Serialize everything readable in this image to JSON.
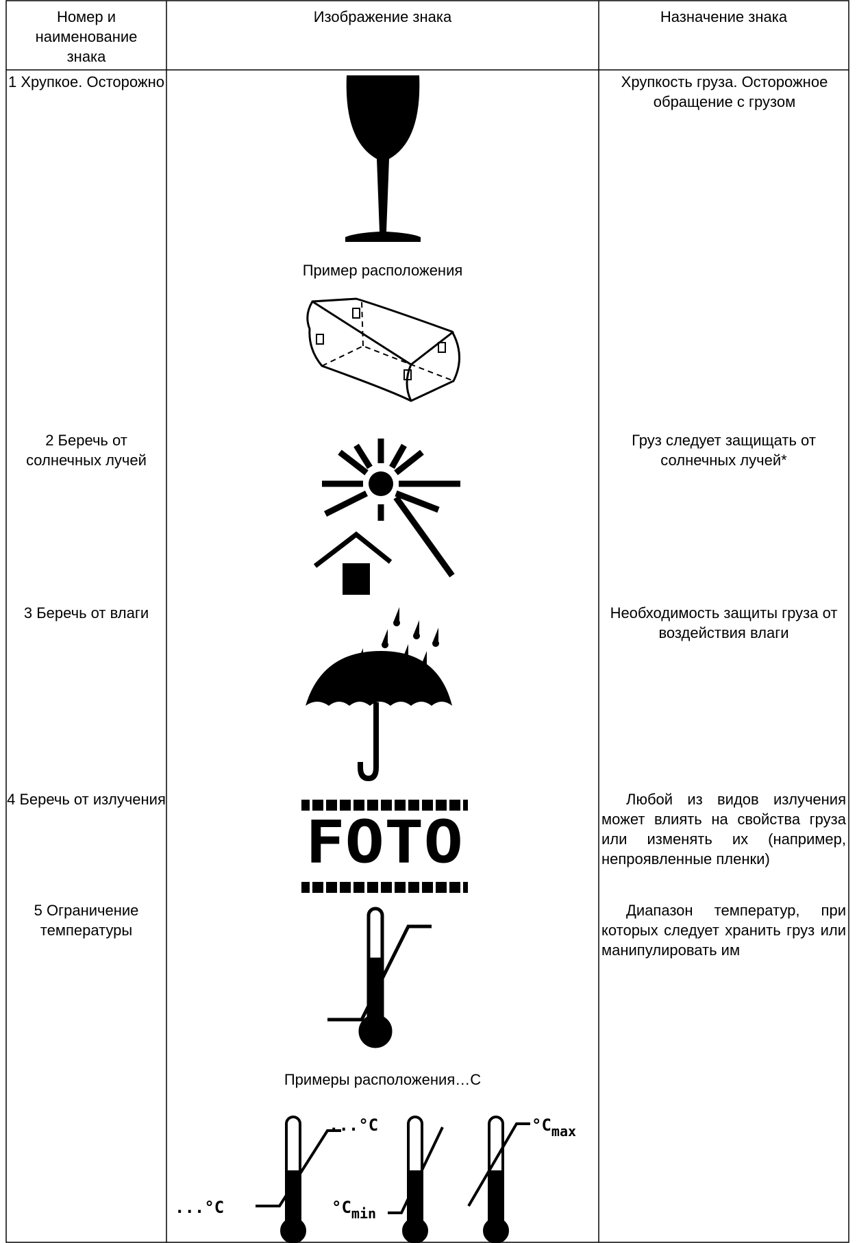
{
  "table": {
    "header": [
      "Номер и наименование знака",
      "Изображение знака",
      "Назначение знака"
    ],
    "rows": [
      {
        "name": "1 Хрупкое. Осторожно",
        "example_caption": "Пример расположения",
        "purpose": "Хрупкость груза. Осторожное обращение с грузом"
      },
      {
        "name": "2 Беречь от солнечных лучей",
        "purpose": "Груз следует защищать от солнечных лучей*"
      },
      {
        "name": "3 Беречь от влаги",
        "purpose": "Необходимость защиты груза от воздействия влаги"
      },
      {
        "name": "4 Беречь от излучения",
        "sign_text": "FOTO",
        "purpose": "Любой из видов излучения может влиять на свойства груза или изменять их (например, непроявленные пленки)"
      },
      {
        "name": "5 Ограничение температуры",
        "example_caption": "Примеры расположения…С",
        "example_labels": [
          "...°C",
          "...°C",
          "°C",
          "min",
          "°C",
          "max"
        ],
        "purpose": "Диапазон температур, при которых следует хранить груз или манипулировать им"
      }
    ]
  }
}
